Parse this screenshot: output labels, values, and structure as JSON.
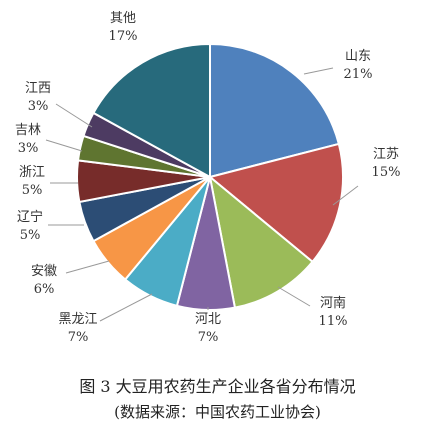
{
  "chart_data": {
    "type": "pie",
    "slices": [
      {
        "label": "山东",
        "value": 21,
        "display": "21%",
        "color": "#4f81bd"
      },
      {
        "label": "江苏",
        "value": 15,
        "display": "15%",
        "color": "#c0504d"
      },
      {
        "label": "河南",
        "value": 11,
        "display": "11%",
        "color": "#9bbb59"
      },
      {
        "label": "河北",
        "value": 7,
        "display": "7%",
        "color": "#8064a2"
      },
      {
        "label": "黑龙江",
        "value": 7,
        "display": "7%",
        "color": "#4bacc6"
      },
      {
        "label": "安徽",
        "value": 6,
        "display": "6%",
        "color": "#f79646"
      },
      {
        "label": "辽宁",
        "value": 5,
        "display": "5%",
        "color": "#2c4d75"
      },
      {
        "label": "浙江",
        "value": 5,
        "display": "5%",
        "color": "#772c2a"
      },
      {
        "label": "吉林",
        "value": 3,
        "display": "3%",
        "color": "#5f7530"
      },
      {
        "label": "江西",
        "value": 3,
        "display": "3%",
        "color": "#4d3b62"
      },
      {
        "label": "其他",
        "value": 17,
        "display": "17%",
        "color": "#276a7c"
      }
    ],
    "start": "12 o'clock",
    "direction": "clockwise"
  },
  "caption": {
    "title": "图 3    大豆用农药生产企业各省分布情况",
    "source": "(数据来源：中国农药工业协会)"
  }
}
